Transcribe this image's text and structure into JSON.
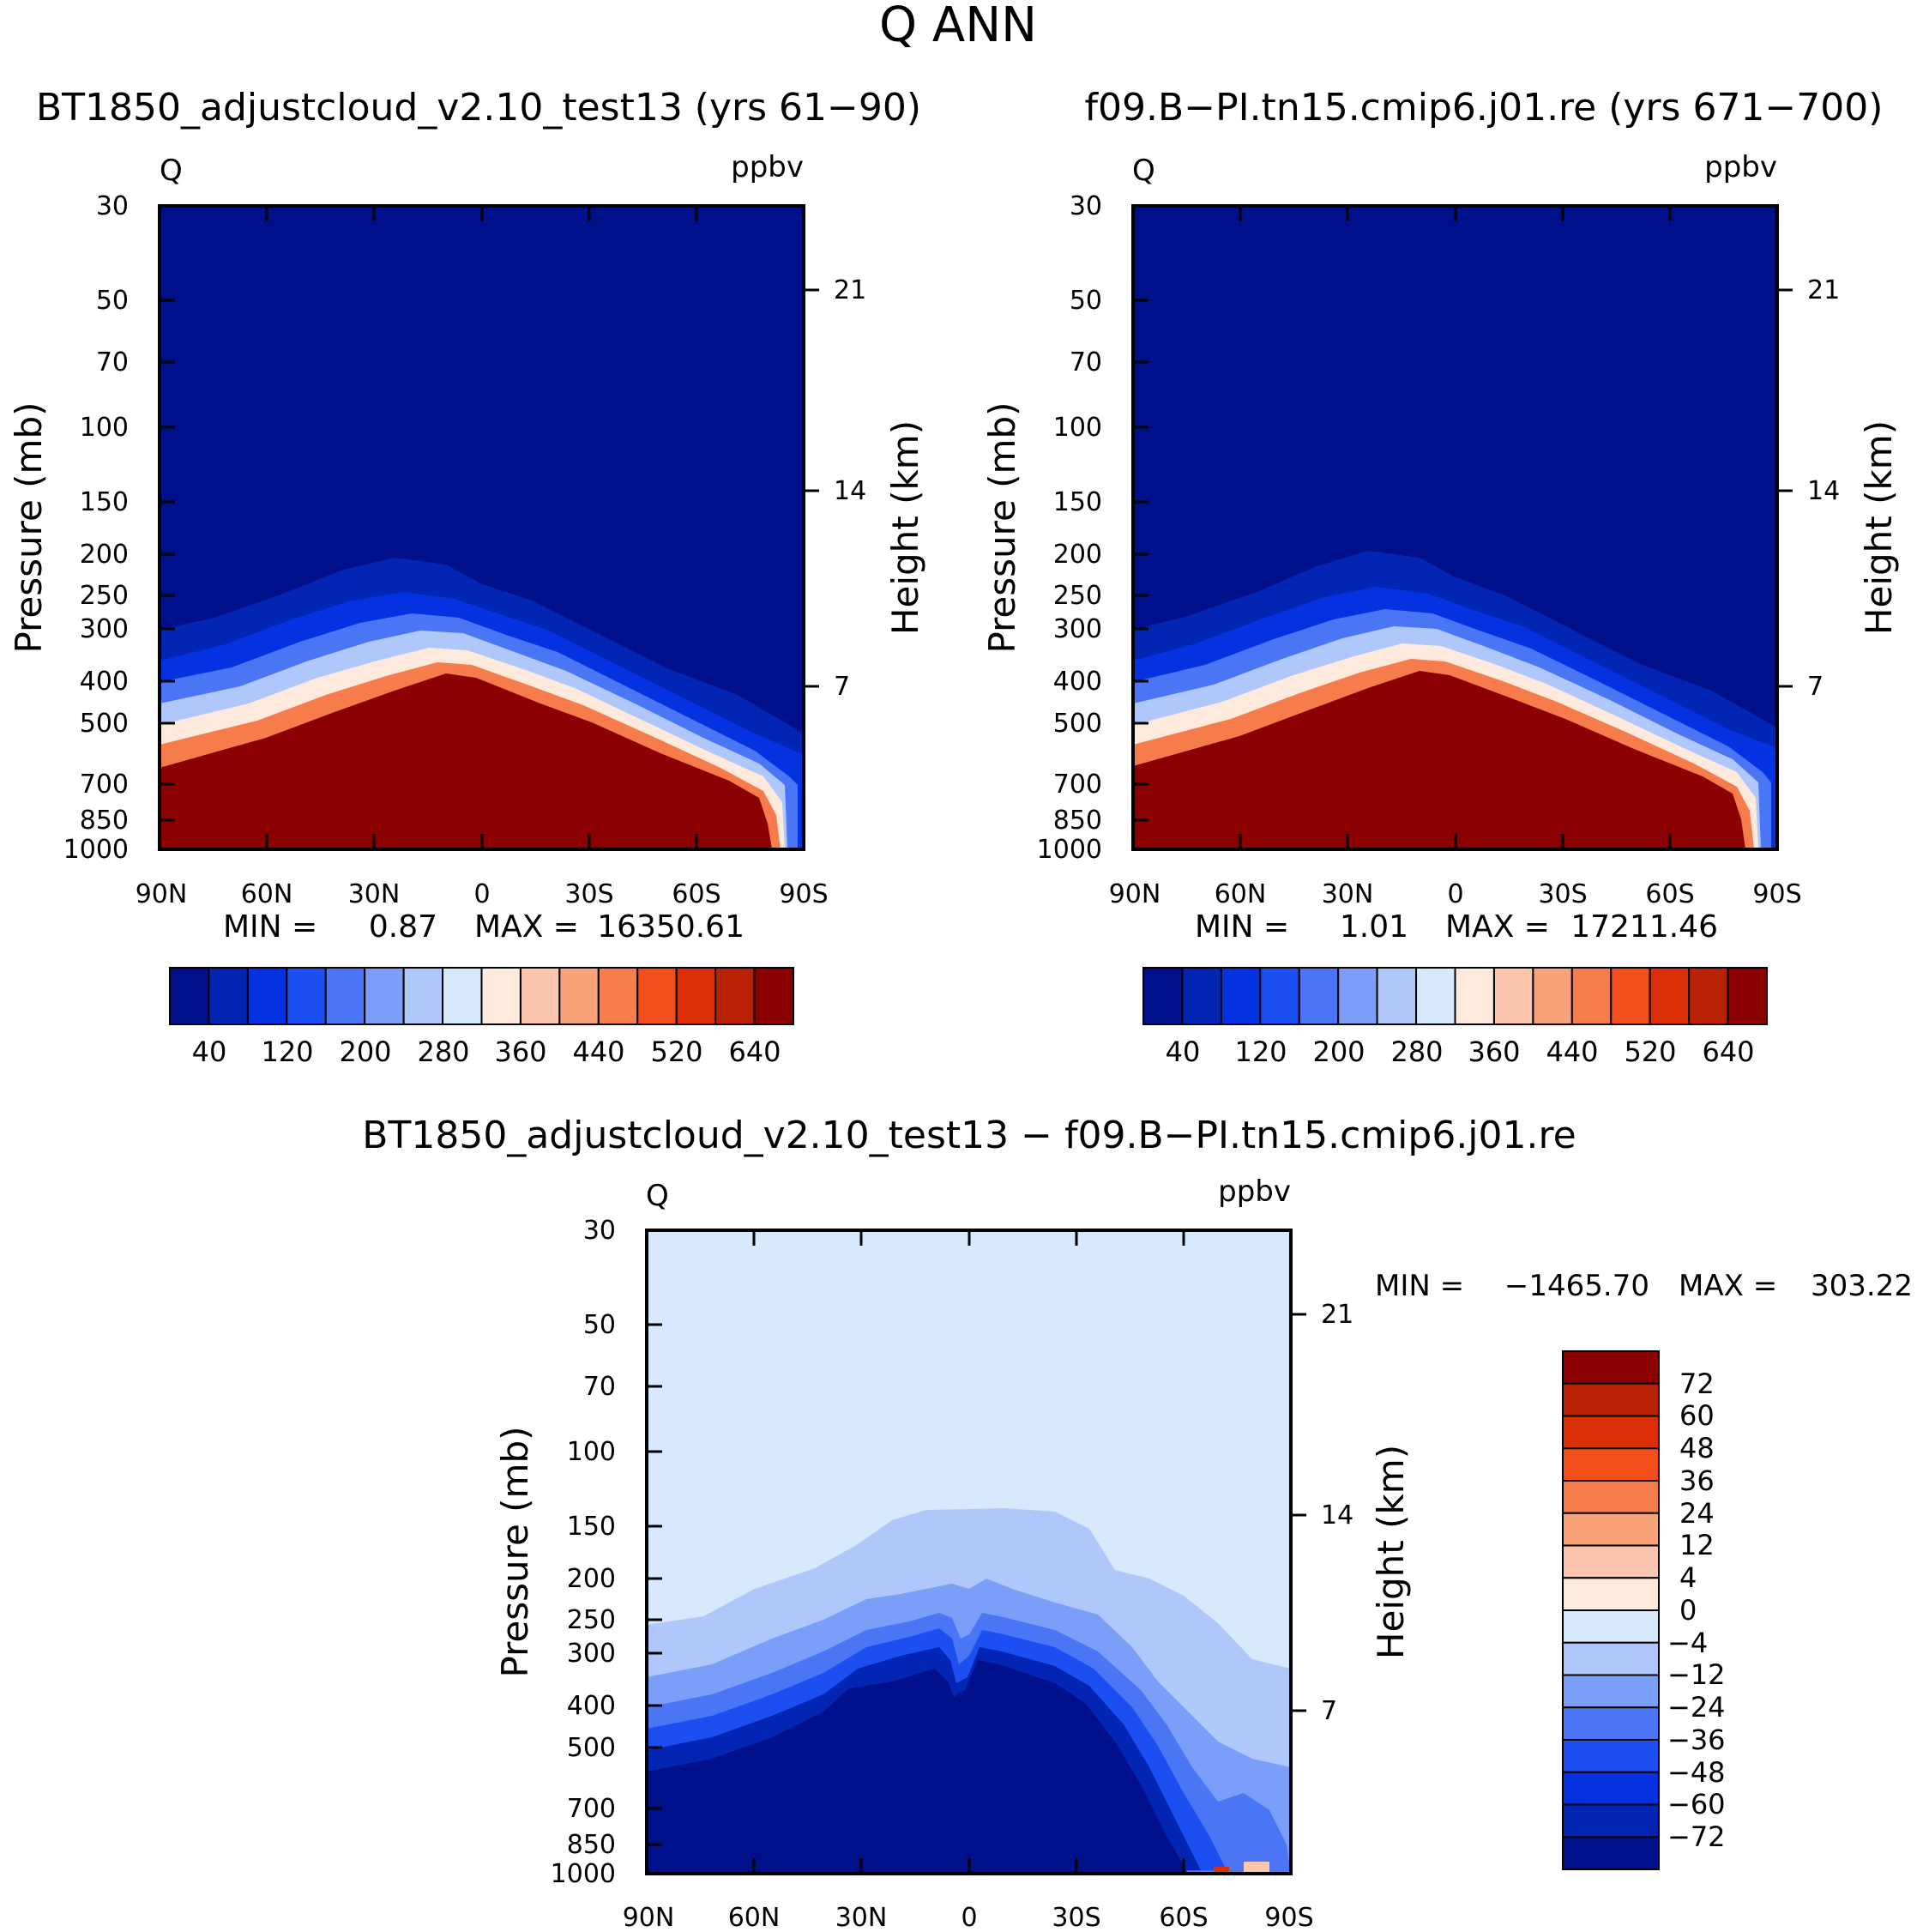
{
  "chart_data": {
    "type": "contour",
    "title": "Q ANN",
    "top_colorbar": {
      "colors": [
        "#000f8a",
        "#0325b4",
        "#0432e0",
        "#1c4ff2",
        "#4a76f5",
        "#7b9ef8",
        "#b0c7fb",
        "#d8e8fd",
        "#fdeadc",
        "#fcc6ae",
        "#faa37a",
        "#f77c4b",
        "#f24e1c",
        "#dc2e07",
        "#b82104",
        "#8b0000"
      ],
      "tick_labels": [
        "40",
        "120",
        "200",
        "280",
        "360",
        "440",
        "520",
        "640"
      ]
    },
    "diff_colorbar": {
      "colors": [
        "#8b0000",
        "#b82104",
        "#dc2e07",
        "#f24e1c",
        "#f77c4b",
        "#faa37a",
        "#fcc6ae",
        "#fdeadc",
        "#d8e8fd",
        "#b0c7fb",
        "#7b9ef8",
        "#4a76f5",
        "#1c4ff2",
        "#0432e0",
        "#0325b4",
        "#000f8a"
      ],
      "tick_labels": [
        "72",
        "60",
        "48",
        "36",
        "24",
        "12",
        "4",
        "0",
        "−4",
        "−12",
        "−24",
        "−36",
        "−48",
        "−60",
        "−72"
      ]
    },
    "panels": [
      {
        "id": "test",
        "title": "BT1850_adjustcloud_v2.10_test13 (yrs 61−90)",
        "var_label": "Q",
        "units": "ppbv",
        "ylabel": "Pressure (mb)",
        "ylabel2": "Height (km)",
        "x_ticks": [
          "90N",
          "60N",
          "30N",
          "0",
          "30S",
          "60S",
          "90S"
        ],
        "y_ticks": [
          "30",
          "50",
          "70",
          "100",
          "150",
          "200",
          "250",
          "300",
          "400",
          "500",
          "700",
          "850",
          "1000"
        ],
        "y2_ticks": [
          "21",
          "14",
          "7"
        ],
        "min_label": "MIN =",
        "min_value": "0.87",
        "max_label": "MAX =",
        "max_value": "16350.61"
      },
      {
        "id": "control",
        "title": "f09.B−PI.tn15.cmip6.j01.re (yrs 671−700)",
        "var_label": "Q",
        "units": "ppbv",
        "ylabel": "Pressure (mb)",
        "ylabel2": "Height (km)",
        "x_ticks": [
          "90N",
          "60N",
          "30N",
          "0",
          "30S",
          "60S",
          "90S"
        ],
        "y_ticks": [
          "30",
          "50",
          "70",
          "100",
          "150",
          "200",
          "250",
          "300",
          "400",
          "500",
          "700",
          "850",
          "1000"
        ],
        "y2_ticks": [
          "21",
          "14",
          "7"
        ],
        "min_label": "MIN =",
        "min_value": "1.01",
        "max_label": "MAX =",
        "max_value": "17211.46"
      },
      {
        "id": "diff",
        "title": "BT1850_adjustcloud_v2.10_test13 − f09.B−PI.tn15.cmip6.j01.re",
        "var_label": "Q",
        "units": "ppbv",
        "ylabel": "Pressure (mb)",
        "ylabel2": "Height (km)",
        "x_ticks": [
          "90N",
          "60N",
          "30N",
          "0",
          "30S",
          "60S",
          "90S"
        ],
        "y_ticks": [
          "30",
          "50",
          "70",
          "100",
          "150",
          "200",
          "250",
          "300",
          "400",
          "500",
          "700",
          "850",
          "1000"
        ],
        "y2_ticks": [
          "21",
          "14",
          "7"
        ],
        "min_label": "MIN =",
        "min_value": "−1465.70",
        "max_label": "MAX =",
        "max_value": "303.22"
      }
    ]
  }
}
